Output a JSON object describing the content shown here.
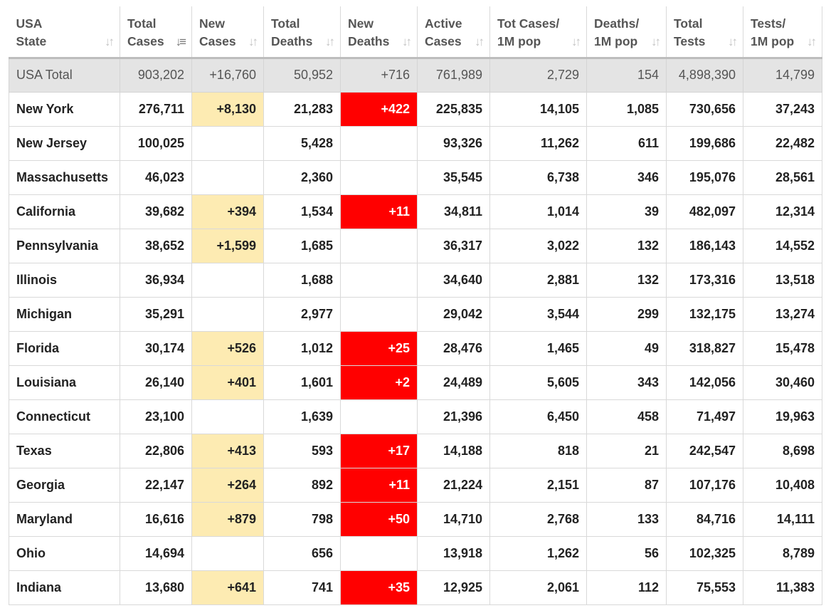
{
  "colors": {
    "new_cases_highlight": "#fdebb2",
    "new_deaths_highlight": "#ff0000",
    "total_row_bg": "#e4e4e4"
  },
  "headers": [
    {
      "l1": "USA",
      "l2": "State",
      "sort_icon": "sort-icon"
    },
    {
      "l1": "Total",
      "l2": "Cases",
      "sort_icon": "sort-desc-icon"
    },
    {
      "l1": "New",
      "l2": "Cases",
      "sort_icon": "sort-icon"
    },
    {
      "l1": "Total",
      "l2": "Deaths",
      "sort_icon": "sort-icon"
    },
    {
      "l1": "New",
      "l2": "Deaths",
      "sort_icon": "sort-icon"
    },
    {
      "l1": "Active",
      "l2": "Cases",
      "sort_icon": "sort-icon"
    },
    {
      "l1": "Tot Cases/",
      "l2": "1M pop",
      "sort_icon": "sort-icon"
    },
    {
      "l1": "Deaths/",
      "l2": "1M pop",
      "sort_icon": "sort-icon"
    },
    {
      "l1": "Total",
      "l2": "Tests",
      "sort_icon": "sort-icon"
    },
    {
      "l1": "Tests/",
      "l2": "1M pop",
      "sort_icon": "sort-icon"
    }
  ],
  "total": {
    "state": "USA Total",
    "total_cases": "903,202",
    "new_cases": "+16,760",
    "total_deaths": "50,952",
    "new_deaths": "+716",
    "active_cases": "761,989",
    "cases_per_1m": "2,729",
    "deaths_per_1m": "154",
    "total_tests": "4,898,390",
    "tests_per_1m": "14,799"
  },
  "rows": [
    {
      "state": "New York",
      "total_cases": "276,711",
      "new_cases": "+8,130",
      "total_deaths": "21,283",
      "new_deaths": "+422",
      "active_cases": "225,835",
      "cases_per_1m": "14,105",
      "deaths_per_1m": "1,085",
      "total_tests": "730,656",
      "tests_per_1m": "37,243"
    },
    {
      "state": "New Jersey",
      "total_cases": "100,025",
      "new_cases": "",
      "total_deaths": "5,428",
      "new_deaths": "",
      "active_cases": "93,326",
      "cases_per_1m": "11,262",
      "deaths_per_1m": "611",
      "total_tests": "199,686",
      "tests_per_1m": "22,482"
    },
    {
      "state": "Massachusetts",
      "total_cases": "46,023",
      "new_cases": "",
      "total_deaths": "2,360",
      "new_deaths": "",
      "active_cases": "35,545",
      "cases_per_1m": "6,738",
      "deaths_per_1m": "346",
      "total_tests": "195,076",
      "tests_per_1m": "28,561"
    },
    {
      "state": "California",
      "total_cases": "39,682",
      "new_cases": "+394",
      "total_deaths": "1,534",
      "new_deaths": "+11",
      "active_cases": "34,811",
      "cases_per_1m": "1,014",
      "deaths_per_1m": "39",
      "total_tests": "482,097",
      "tests_per_1m": "12,314"
    },
    {
      "state": "Pennsylvania",
      "total_cases": "38,652",
      "new_cases": "+1,599",
      "total_deaths": "1,685",
      "new_deaths": "",
      "active_cases": "36,317",
      "cases_per_1m": "3,022",
      "deaths_per_1m": "132",
      "total_tests": "186,143",
      "tests_per_1m": "14,552"
    },
    {
      "state": "Illinois",
      "total_cases": "36,934",
      "new_cases": "",
      "total_deaths": "1,688",
      "new_deaths": "",
      "active_cases": "34,640",
      "cases_per_1m": "2,881",
      "deaths_per_1m": "132",
      "total_tests": "173,316",
      "tests_per_1m": "13,518"
    },
    {
      "state": "Michigan",
      "total_cases": "35,291",
      "new_cases": "",
      "total_deaths": "2,977",
      "new_deaths": "",
      "active_cases": "29,042",
      "cases_per_1m": "3,544",
      "deaths_per_1m": "299",
      "total_tests": "132,175",
      "tests_per_1m": "13,274"
    },
    {
      "state": "Florida",
      "total_cases": "30,174",
      "new_cases": "+526",
      "total_deaths": "1,012",
      "new_deaths": "+25",
      "active_cases": "28,476",
      "cases_per_1m": "1,465",
      "deaths_per_1m": "49",
      "total_tests": "318,827",
      "tests_per_1m": "15,478"
    },
    {
      "state": "Louisiana",
      "total_cases": "26,140",
      "new_cases": "+401",
      "total_deaths": "1,601",
      "new_deaths": "+2",
      "active_cases": "24,489",
      "cases_per_1m": "5,605",
      "deaths_per_1m": "343",
      "total_tests": "142,056",
      "tests_per_1m": "30,460"
    },
    {
      "state": "Connecticut",
      "total_cases": "23,100",
      "new_cases": "",
      "total_deaths": "1,639",
      "new_deaths": "",
      "active_cases": "21,396",
      "cases_per_1m": "6,450",
      "deaths_per_1m": "458",
      "total_tests": "71,497",
      "tests_per_1m": "19,963"
    },
    {
      "state": "Texas",
      "total_cases": "22,806",
      "new_cases": "+413",
      "total_deaths": "593",
      "new_deaths": "+17",
      "active_cases": "14,188",
      "cases_per_1m": "818",
      "deaths_per_1m": "21",
      "total_tests": "242,547",
      "tests_per_1m": "8,698"
    },
    {
      "state": "Georgia",
      "total_cases": "22,147",
      "new_cases": "+264",
      "total_deaths": "892",
      "new_deaths": "+11",
      "active_cases": "21,224",
      "cases_per_1m": "2,151",
      "deaths_per_1m": "87",
      "total_tests": "107,176",
      "tests_per_1m": "10,408"
    },
    {
      "state": "Maryland",
      "total_cases": "16,616",
      "new_cases": "+879",
      "total_deaths": "798",
      "new_deaths": "+50",
      "active_cases": "14,710",
      "cases_per_1m": "2,768",
      "deaths_per_1m": "133",
      "total_tests": "84,716",
      "tests_per_1m": "14,111"
    },
    {
      "state": "Ohio",
      "total_cases": "14,694",
      "new_cases": "",
      "total_deaths": "656",
      "new_deaths": "",
      "active_cases": "13,918",
      "cases_per_1m": "1,262",
      "deaths_per_1m": "56",
      "total_tests": "102,325",
      "tests_per_1m": "8,789"
    },
    {
      "state": "Indiana",
      "total_cases": "13,680",
      "new_cases": "+641",
      "total_deaths": "741",
      "new_deaths": "+35",
      "active_cases": "12,925",
      "cases_per_1m": "2,061",
      "deaths_per_1m": "112",
      "total_tests": "75,553",
      "tests_per_1m": "11,383"
    }
  ]
}
